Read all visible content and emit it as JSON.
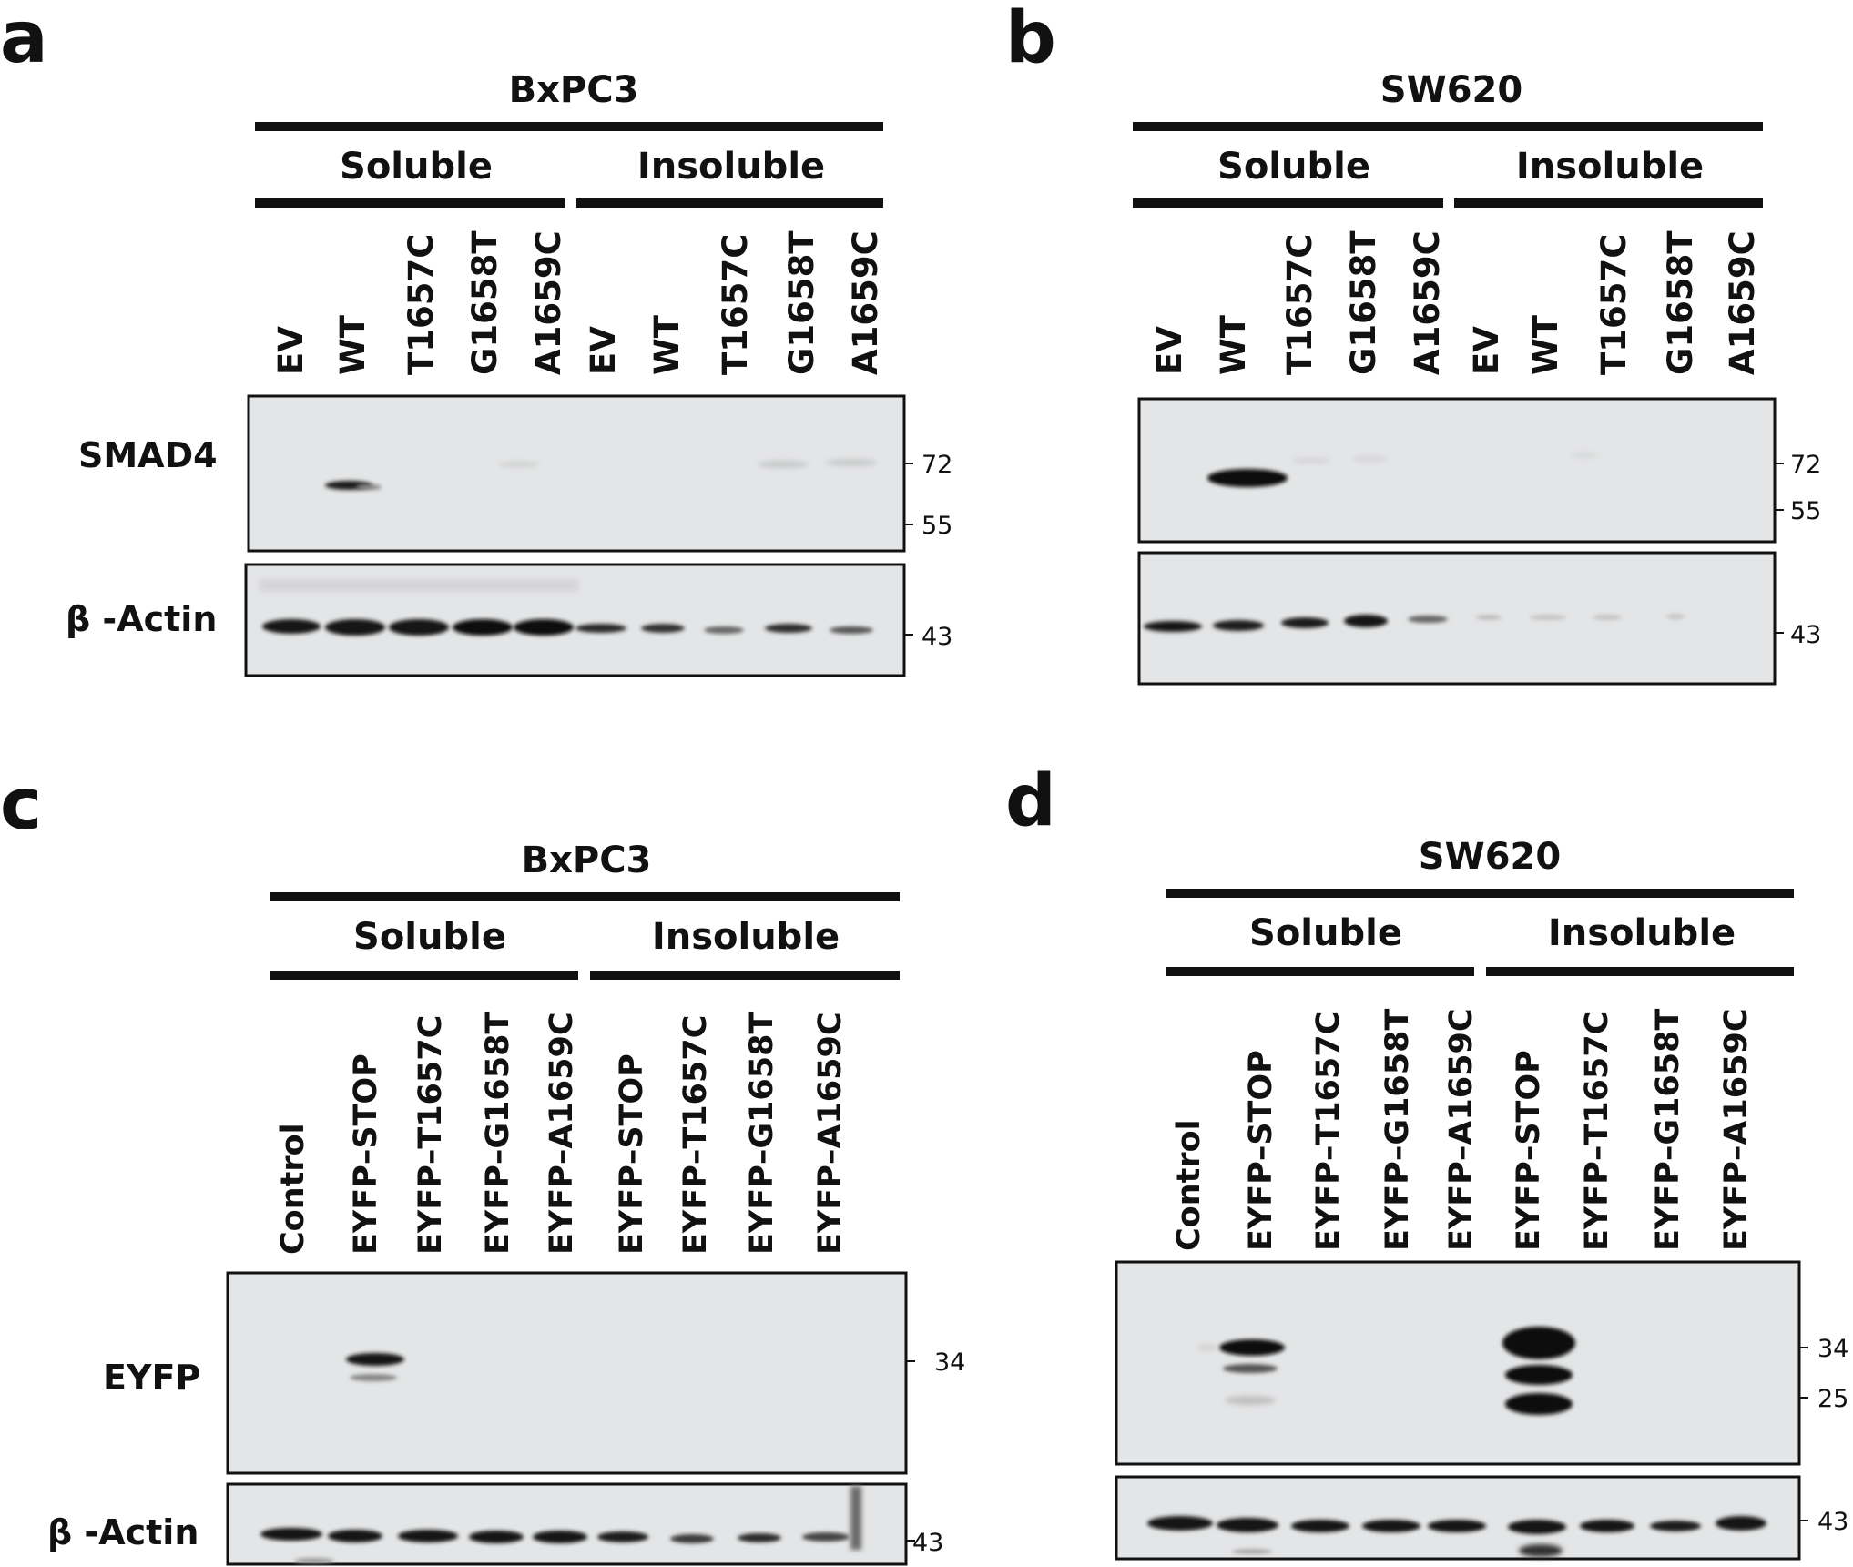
{
  "panels": {
    "a": {
      "label": "a",
      "cell_line": "BxPC3",
      "fractions": [
        "Soluble",
        "Insoluble"
      ],
      "lanes": [
        "EV",
        "WT",
        "T1657C",
        "G1658T",
        "A1659C",
        "EV",
        "WT",
        "T1657C",
        "G1658T",
        "A1659C"
      ],
      "blots": [
        {
          "protein": "SMAD4",
          "markers": [
            "72",
            "55"
          ]
        },
        {
          "protein": "β -Actin",
          "markers": [
            "43"
          ]
        }
      ]
    },
    "b": {
      "label": "b",
      "cell_line": "SW620",
      "fractions": [
        "Soluble",
        "Insoluble"
      ],
      "lanes": [
        "EV",
        "WT",
        "T1657C",
        "G1658T",
        "A1659C",
        "EV",
        "WT",
        "T1657C",
        "G1658T",
        "A1659C"
      ],
      "blots": [
        {
          "protein": "",
          "markers": [
            "72",
            "55"
          ]
        },
        {
          "protein": "",
          "markers": [
            "43"
          ]
        }
      ]
    },
    "c": {
      "label": "c",
      "cell_line": "BxPC3",
      "fractions": [
        "Soluble",
        "Insoluble"
      ],
      "lanes": [
        "Control",
        "EYFP–STOP",
        "EYFP–T1657C",
        "EYFP–G1658T",
        "EYFP–A1659C",
        "EYFP–STOP",
        "EYFP–T1657C",
        "EYFP–G1658T",
        "EYFP–A1659C"
      ],
      "blots": [
        {
          "protein": "EYFP",
          "markers": [
            "34"
          ]
        },
        {
          "protein": "β -Actin",
          "markers": [
            "43"
          ]
        }
      ]
    },
    "d": {
      "label": "d",
      "cell_line": "SW620",
      "fractions": [
        "Soluble",
        "Insoluble"
      ],
      "lanes": [
        "Control",
        "EYFP–STOP",
        "EYFP–T1657C",
        "EYFP–G1658T",
        "EYFP–A1659C",
        "EYFP–STOP",
        "EYFP–T1657C",
        "EYFP–G1658T",
        "EYFP–A1659C"
      ],
      "blots": [
        {
          "protein": "",
          "markers": [
            "34",
            "25"
          ]
        },
        {
          "protein": "",
          "markers": [
            "43"
          ]
        }
      ]
    }
  }
}
